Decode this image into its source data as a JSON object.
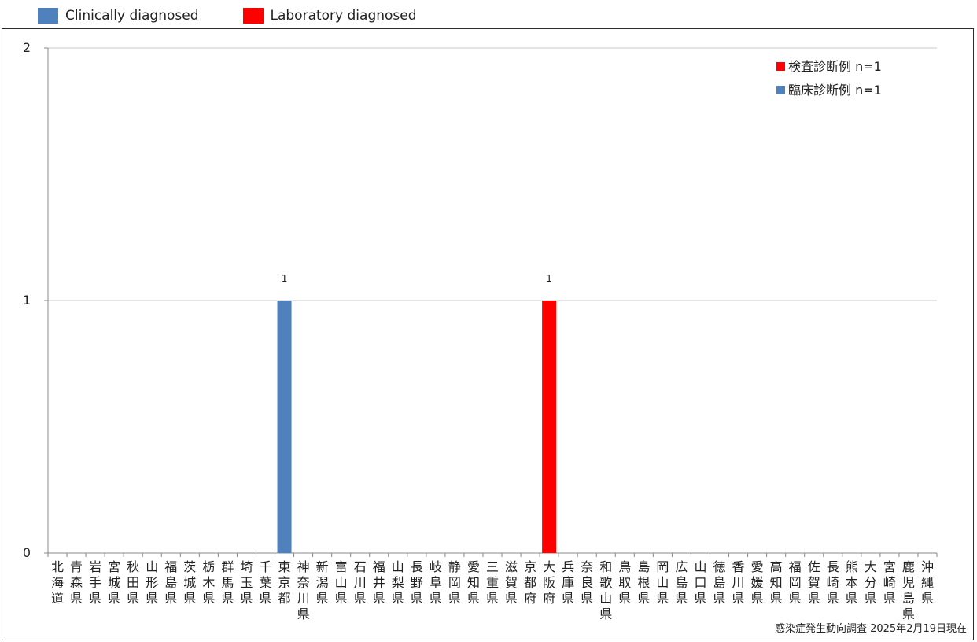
{
  "outer_legend": [
    {
      "label": "Clinically diagnosed",
      "color": "#4f81bd"
    },
    {
      "label": "Laboratory diagnosed",
      "color": "#ff0000"
    }
  ],
  "source_note": "感染症発生動向調査 2025年2月19日現在",
  "chart_data": {
    "type": "bar",
    "stacked": true,
    "categories": [
      "北海道",
      "青森県",
      "岩手県",
      "宮城県",
      "秋田県",
      "山形県",
      "福島県",
      "茨城県",
      "栃木県",
      "群馬県",
      "埼玉県",
      "千葉県",
      "東京都",
      "神奈川県",
      "新潟県",
      "富山県",
      "石川県",
      "福井県",
      "山梨県",
      "長野県",
      "岐阜県",
      "静岡県",
      "愛知県",
      "三重県",
      "滋賀県",
      "京都府",
      "大阪府",
      "兵庫県",
      "奈良県",
      "和歌山県",
      "鳥取県",
      "島根県",
      "岡山県",
      "広島県",
      "山口県",
      "徳島県",
      "香川県",
      "愛媛県",
      "高知県",
      "福岡県",
      "佐賀県",
      "長崎県",
      "熊本県",
      "大分県",
      "宮崎県",
      "鹿児島県",
      "沖縄県"
    ],
    "series": [
      {
        "name": "臨床診断例 n=1",
        "color": "#4f81bd",
        "values": [
          0,
          0,
          0,
          0,
          0,
          0,
          0,
          0,
          0,
          0,
          0,
          0,
          1,
          0,
          0,
          0,
          0,
          0,
          0,
          0,
          0,
          0,
          0,
          0,
          0,
          0,
          0,
          0,
          0,
          0,
          0,
          0,
          0,
          0,
          0,
          0,
          0,
          0,
          0,
          0,
          0,
          0,
          0,
          0,
          0,
          0,
          0
        ]
      },
      {
        "name": "検査診断例 n=1",
        "color": "#ff0000",
        "values": [
          0,
          0,
          0,
          0,
          0,
          0,
          0,
          0,
          0,
          0,
          0,
          0,
          0,
          0,
          0,
          0,
          0,
          0,
          0,
          0,
          0,
          0,
          0,
          0,
          0,
          0,
          1,
          0,
          0,
          0,
          0,
          0,
          0,
          0,
          0,
          0,
          0,
          0,
          0,
          0,
          0,
          0,
          0,
          0,
          0,
          0,
          0
        ]
      }
    ],
    "legend_order": [
      "検査診断例 n=1",
      "臨床診断例 n=1"
    ],
    "legend_position": "top-right",
    "yticks": [
      0,
      1,
      2
    ],
    "ylim": [
      0,
      2
    ],
    "grid": true,
    "data_labels": true
  }
}
